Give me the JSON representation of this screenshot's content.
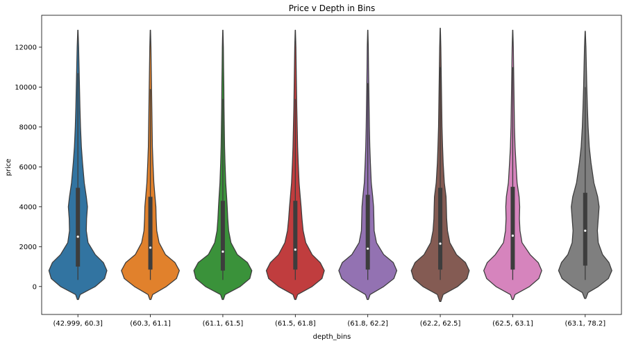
{
  "chart_data": {
    "type": "violin",
    "title": "Price v Depth in Bins",
    "xlabel": "depth_bins",
    "ylabel": "price",
    "ylim": [
      -1400,
      13600
    ],
    "yticks": [
      0,
      2000,
      4000,
      6000,
      8000,
      10000,
      12000
    ],
    "grid": false,
    "categories": [
      "(42.999, 60.3]",
      "(60.3, 61.1]",
      "(61.1, 61.5]",
      "(61.5, 61.8]",
      "(61.8, 62.2]",
      "(62.2, 62.5]",
      "(62.5, 63.1]",
      "(63.1, 78.2]"
    ],
    "colors": [
      "#3274a1",
      "#e1812c",
      "#3a923a",
      "#c03d3e",
      "#9372b2",
      "#845b53",
      "#d684bd",
      "#7f7f7f"
    ],
    "violins": [
      {
        "min": 330,
        "q1": 1000,
        "median": 2500,
        "q3": 4950,
        "whisker_high": 10700,
        "kde_low": -650,
        "kde_high": 12850,
        "profile": [
          [
            -650,
            0.02
          ],
          [
            -400,
            0.08
          ],
          [
            0,
            0.6
          ],
          [
            400,
            0.92
          ],
          [
            800,
            1.0
          ],
          [
            1200,
            0.88
          ],
          [
            1600,
            0.6
          ],
          [
            2200,
            0.35
          ],
          [
            2800,
            0.29
          ],
          [
            3400,
            0.3
          ],
          [
            4000,
            0.33
          ],
          [
            4500,
            0.29
          ],
          [
            5200,
            0.22
          ],
          [
            6200,
            0.16
          ],
          [
            7000,
            0.12
          ],
          [
            8000,
            0.09
          ],
          [
            9000,
            0.07
          ],
          [
            10000,
            0.055
          ],
          [
            11000,
            0.04
          ],
          [
            12000,
            0.025
          ],
          [
            12850,
            0.005
          ]
        ]
      },
      {
        "min": 330,
        "q1": 850,
        "median": 1950,
        "q3": 4500,
        "whisker_high": 9900,
        "kde_low": -650,
        "kde_high": 12850,
        "profile": [
          [
            -650,
            0.02
          ],
          [
            -400,
            0.08
          ],
          [
            0,
            0.55
          ],
          [
            400,
            0.9
          ],
          [
            800,
            1.0
          ],
          [
            1200,
            0.85
          ],
          [
            1600,
            0.52
          ],
          [
            2200,
            0.3
          ],
          [
            2800,
            0.22
          ],
          [
            3400,
            0.2
          ],
          [
            4000,
            0.19
          ],
          [
            4500,
            0.16
          ],
          [
            5200,
            0.12
          ],
          [
            6200,
            0.09
          ],
          [
            7000,
            0.07
          ],
          [
            8000,
            0.06
          ],
          [
            9000,
            0.05
          ],
          [
            10000,
            0.04
          ],
          [
            11000,
            0.03
          ],
          [
            12000,
            0.02
          ],
          [
            12850,
            0.005
          ]
        ]
      },
      {
        "min": 330,
        "q1": 800,
        "median": 1750,
        "q3": 4300,
        "whisker_high": 9400,
        "kde_low": -650,
        "kde_high": 12850,
        "profile": [
          [
            -650,
            0.02
          ],
          [
            -400,
            0.08
          ],
          [
            0,
            0.6
          ],
          [
            400,
            0.93
          ],
          [
            800,
            1.0
          ],
          [
            1200,
            0.85
          ],
          [
            1600,
            0.5
          ],
          [
            2200,
            0.28
          ],
          [
            2800,
            0.2
          ],
          [
            3400,
            0.17
          ],
          [
            4000,
            0.15
          ],
          [
            4500,
            0.13
          ],
          [
            5200,
            0.1
          ],
          [
            6200,
            0.075
          ],
          [
            7000,
            0.06
          ],
          [
            8000,
            0.05
          ],
          [
            9000,
            0.04
          ],
          [
            10000,
            0.035
          ],
          [
            11000,
            0.025
          ],
          [
            12000,
            0.018
          ],
          [
            12850,
            0.004
          ]
        ]
      },
      {
        "min": 330,
        "q1": 850,
        "median": 1850,
        "q3": 4300,
        "whisker_high": 9400,
        "kde_low": -650,
        "kde_high": 12850,
        "profile": [
          [
            -650,
            0.02
          ],
          [
            -400,
            0.08
          ],
          [
            0,
            0.58
          ],
          [
            400,
            0.92
          ],
          [
            800,
            1.0
          ],
          [
            1200,
            0.86
          ],
          [
            1600,
            0.58
          ],
          [
            2200,
            0.36
          ],
          [
            2800,
            0.27
          ],
          [
            3400,
            0.23
          ],
          [
            4000,
            0.2
          ],
          [
            4500,
            0.17
          ],
          [
            5200,
            0.13
          ],
          [
            6200,
            0.1
          ],
          [
            7000,
            0.08
          ],
          [
            8000,
            0.065
          ],
          [
            9000,
            0.05
          ],
          [
            10000,
            0.04
          ],
          [
            11000,
            0.03
          ],
          [
            12000,
            0.02
          ],
          [
            12850,
            0.004
          ]
        ]
      },
      {
        "min": 330,
        "q1": 850,
        "median": 1900,
        "q3": 4600,
        "whisker_high": 10200,
        "kde_low": -650,
        "kde_high": 12850,
        "profile": [
          [
            -650,
            0.02
          ],
          [
            -400,
            0.08
          ],
          [
            0,
            0.55
          ],
          [
            400,
            0.9
          ],
          [
            800,
            1.0
          ],
          [
            1200,
            0.88
          ],
          [
            1600,
            0.55
          ],
          [
            2200,
            0.3
          ],
          [
            2800,
            0.22
          ],
          [
            3400,
            0.21
          ],
          [
            4000,
            0.2
          ],
          [
            4500,
            0.17
          ],
          [
            5200,
            0.12
          ],
          [
            6200,
            0.09
          ],
          [
            7000,
            0.07
          ],
          [
            8000,
            0.055
          ],
          [
            9000,
            0.045
          ],
          [
            10000,
            0.035
          ],
          [
            11000,
            0.025
          ],
          [
            12000,
            0.018
          ],
          [
            12850,
            0.004
          ]
        ]
      },
      {
        "min": 330,
        "q1": 850,
        "median": 2150,
        "q3": 4950,
        "whisker_high": 11000,
        "kde_low": -750,
        "kde_high": 12950,
        "profile": [
          [
            -750,
            0.02
          ],
          [
            -400,
            0.1
          ],
          [
            0,
            0.6
          ],
          [
            400,
            0.92
          ],
          [
            800,
            1.0
          ],
          [
            1200,
            0.87
          ],
          [
            1600,
            0.56
          ],
          [
            2200,
            0.33
          ],
          [
            2800,
            0.25
          ],
          [
            3400,
            0.22
          ],
          [
            4000,
            0.21
          ],
          [
            4500,
            0.2
          ],
          [
            5200,
            0.14
          ],
          [
            6200,
            0.1
          ],
          [
            7000,
            0.08
          ],
          [
            8000,
            0.06
          ],
          [
            9000,
            0.05
          ],
          [
            10000,
            0.04
          ],
          [
            11000,
            0.03
          ],
          [
            12000,
            0.02
          ],
          [
            12950,
            0.004
          ]
        ]
      },
      {
        "min": 330,
        "q1": 850,
        "median": 2550,
        "q3": 5000,
        "whisker_high": 11000,
        "kde_low": -650,
        "kde_high": 12850,
        "profile": [
          [
            -650,
            0.02
          ],
          [
            -400,
            0.08
          ],
          [
            0,
            0.58
          ],
          [
            400,
            0.9
          ],
          [
            800,
            1.0
          ],
          [
            1200,
            0.88
          ],
          [
            1600,
            0.6
          ],
          [
            2200,
            0.32
          ],
          [
            2800,
            0.25
          ],
          [
            3400,
            0.23
          ],
          [
            4000,
            0.24
          ],
          [
            4500,
            0.22
          ],
          [
            5200,
            0.15
          ],
          [
            6200,
            0.11
          ],
          [
            7000,
            0.08
          ],
          [
            8000,
            0.06
          ],
          [
            9000,
            0.05
          ],
          [
            10000,
            0.04
          ],
          [
            11000,
            0.03
          ],
          [
            12000,
            0.02
          ],
          [
            12850,
            0.004
          ]
        ]
      },
      {
        "min": 330,
        "q1": 1050,
        "median": 2800,
        "q3": 4700,
        "whisker_high": 10000,
        "kde_low": -600,
        "kde_high": 12800,
        "profile": [
          [
            -600,
            0.02
          ],
          [
            -300,
            0.1
          ],
          [
            0,
            0.45
          ],
          [
            400,
            0.8
          ],
          [
            800,
            0.92
          ],
          [
            1200,
            0.82
          ],
          [
            1600,
            0.6
          ],
          [
            2200,
            0.45
          ],
          [
            2800,
            0.42
          ],
          [
            3400,
            0.45
          ],
          [
            4000,
            0.48
          ],
          [
            4500,
            0.43
          ],
          [
            5200,
            0.3
          ],
          [
            6200,
            0.2
          ],
          [
            7000,
            0.14
          ],
          [
            8000,
            0.1
          ],
          [
            9000,
            0.075
          ],
          [
            10000,
            0.055
          ],
          [
            11000,
            0.04
          ],
          [
            12000,
            0.025
          ],
          [
            12800,
            0.004
          ]
        ]
      }
    ]
  }
}
